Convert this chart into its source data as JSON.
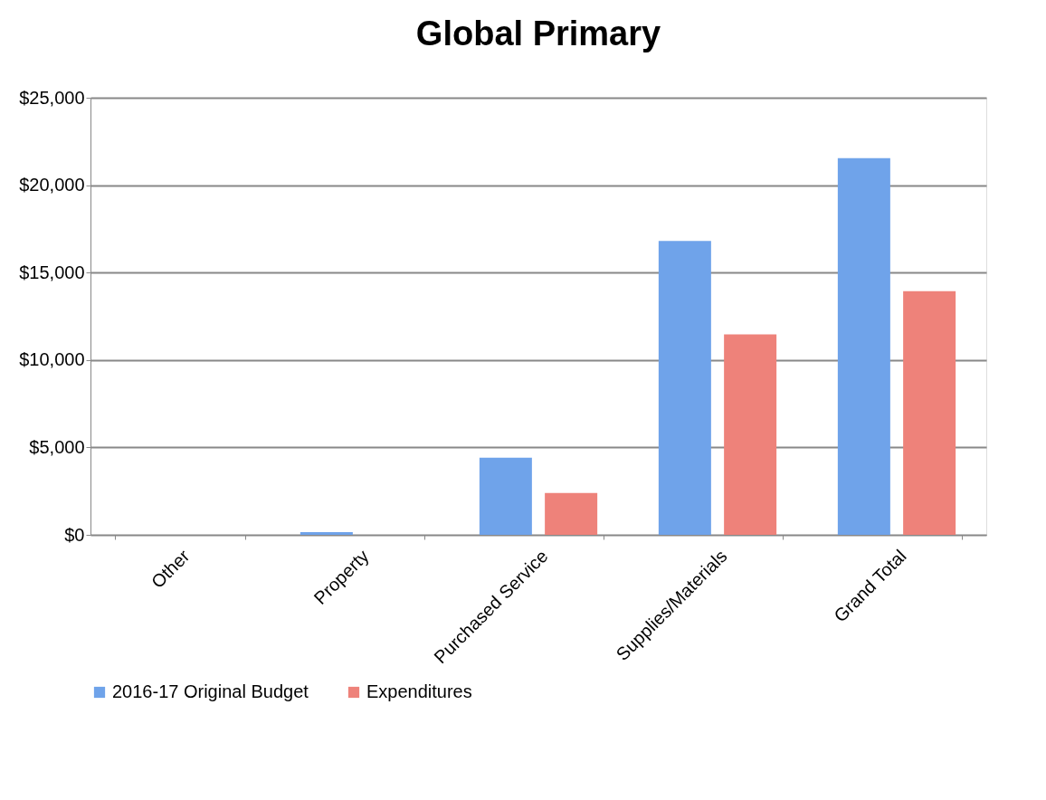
{
  "chart_data": {
    "type": "bar",
    "title": "Global Primary",
    "categories": [
      "Other",
      "Property",
      "Purchased Service",
      "Supplies/Materials",
      "Grand Total"
    ],
    "series": [
      {
        "name": "2016-17 Original Budget",
        "color": "#6fa3ea",
        "values": [
          0,
          150,
          4410,
          16810,
          21540
        ]
      },
      {
        "name": "Expenditures",
        "color": "#ee827a",
        "values": [
          0,
          0,
          2390,
          11460,
          13940
        ]
      }
    ],
    "ylim": [
      0,
      25000
    ],
    "yticks": [
      {
        "value": 0,
        "label": "$0"
      },
      {
        "value": 5000,
        "label": "$5,000"
      },
      {
        "value": 10000,
        "label": "$10,000"
      },
      {
        "value": 15000,
        "label": "$15,000"
      },
      {
        "value": 20000,
        "label": "$20,000"
      },
      {
        "value": 25000,
        "label": "$25,000"
      }
    ],
    "grid": "y",
    "legend": "bottom"
  }
}
